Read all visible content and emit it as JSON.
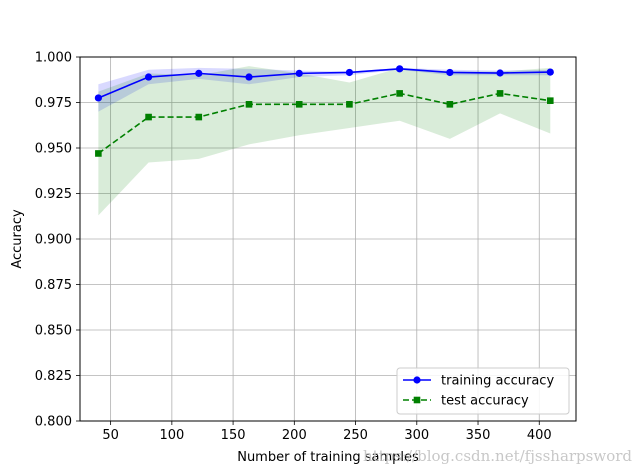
{
  "chart_data": {
    "type": "line",
    "title": "",
    "xlabel": "Number of training samples",
    "ylabel": "Accuracy",
    "xlim": [
      25,
      430
    ],
    "ylim": [
      0.8,
      1.0
    ],
    "xticks": [
      50,
      100,
      150,
      200,
      250,
      300,
      350,
      400
    ],
    "yticks": [
      0.8,
      0.825,
      0.85,
      0.875,
      0.9,
      0.925,
      0.95,
      0.975,
      1.0
    ],
    "xtick_labels": [
      "50",
      "100",
      "150",
      "200",
      "250",
      "300",
      "350",
      "400"
    ],
    "ytick_labels": [
      "0.800",
      "0.825",
      "0.850",
      "0.875",
      "0.900",
      "0.925",
      "0.950",
      "0.975",
      "1.000"
    ],
    "grid": true,
    "legend_position": "lower-right",
    "x": [
      40,
      81,
      122,
      163,
      204,
      245,
      286,
      327,
      368,
      409
    ],
    "series": [
      {
        "name": "training accuracy",
        "color": "#0000ff",
        "linestyle": "solid",
        "marker": "circle",
        "values": [
          0.9775,
          0.989,
          0.991,
          0.989,
          0.991,
          0.9915,
          0.9935,
          0.9915,
          0.9912,
          0.9917
        ],
        "band_upper": [
          0.985,
          0.993,
          0.994,
          0.9935,
          0.9925,
          0.992,
          0.994,
          0.993,
          0.9925,
          0.993
        ],
        "band_lower": [
          0.97,
          0.985,
          0.988,
          0.985,
          0.989,
          0.99,
          0.993,
          0.99,
          0.99,
          0.99
        ],
        "band_color": "#0000ff"
      },
      {
        "name": "test accuracy",
        "color": "#008000",
        "linestyle": "dashed",
        "marker": "square",
        "values": [
          0.947,
          0.967,
          0.967,
          0.974,
          0.974,
          0.974,
          0.98,
          0.974,
          0.98,
          0.976
        ],
        "band_upper": [
          0.981,
          0.991,
          0.99,
          0.995,
          0.991,
          0.986,
          0.994,
          0.992,
          0.992,
          0.994
        ],
        "band_lower": [
          0.913,
          0.942,
          0.944,
          0.952,
          0.957,
          0.961,
          0.965,
          0.955,
          0.969,
          0.958
        ],
        "band_color": "#008000"
      }
    ]
  },
  "watermark": "https://blog.csdn.net/fjssharpsword"
}
